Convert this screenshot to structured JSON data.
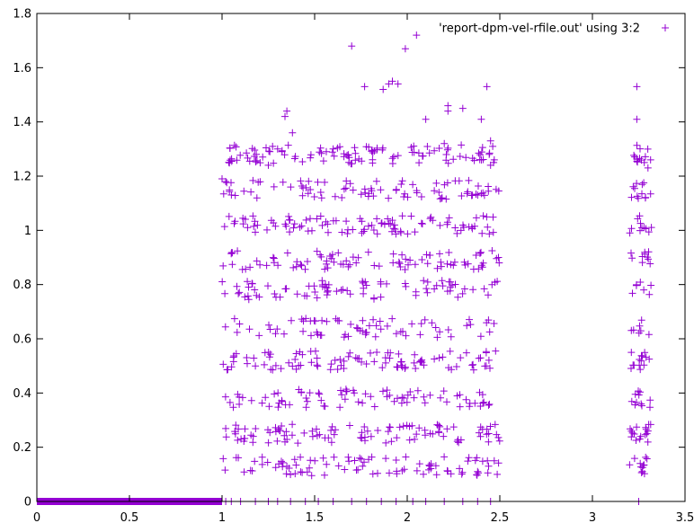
{
  "chart_data": {
    "type": "scatter",
    "title": "",
    "xlabel": "",
    "ylabel": "",
    "xlim": [
      0,
      3.5
    ],
    "ylim": [
      0,
      1.8
    ],
    "x_ticks": [
      "0",
      "0.5",
      "1",
      "1.5",
      "2",
      "2.5",
      "3",
      "3.5"
    ],
    "y_ticks": [
      "0",
      "0.2",
      "0.4",
      "0.6",
      "0.8",
      "1",
      "1.2",
      "1.4",
      "1.6",
      "1.8"
    ],
    "grid": false,
    "legend_position": "top-right",
    "marker": "plus",
    "series": [
      {
        "name": "'report-dpm-vel-rfile.out' using 3:2",
        "color": "#9400d3",
        "generator": {
          "zero_band": {
            "x_range": [
              0,
              1.0
            ],
            "y": 0
          },
          "zero_scatter_x": [
            1.02,
            1.05,
            1.1,
            1.18,
            1.25,
            1.3,
            1.37,
            1.45,
            1.52,
            1.6,
            1.7,
            1.78,
            1.86,
            1.94,
            2.03,
            2.1,
            2.2,
            2.3,
            2.38,
            2.45,
            3.25
          ],
          "clusters": [
            {
              "x_range": [
                1.0,
                2.5
              ],
              "y_levels": [
                0.13,
                0.25,
                0.38,
                0.52,
                0.64,
                0.78,
                0.89,
                1.02,
                1.15,
                1.28
              ],
              "count": 900
            },
            {
              "x_range": [
                3.2,
                3.32
              ],
              "y_levels": [
                0.13,
                0.25,
                0.38,
                0.52,
                0.64,
                0.78,
                0.89,
                1.02,
                1.15,
                1.28
              ],
              "count": 110
            }
          ]
        },
        "points": [
          [
            1.0,
            1.19
          ],
          [
            1.02,
            1.18
          ],
          [
            1.34,
            1.42
          ],
          [
            1.35,
            1.44
          ],
          [
            1.38,
            1.36
          ],
          [
            1.6,
            1.3
          ],
          [
            1.7,
            1.68
          ],
          [
            1.77,
            1.53
          ],
          [
            1.87,
            1.52
          ],
          [
            1.9,
            1.54
          ],
          [
            1.92,
            1.55
          ],
          [
            1.95,
            1.54
          ],
          [
            1.99,
            1.67
          ],
          [
            2.05,
            1.72
          ],
          [
            2.1,
            1.41
          ],
          [
            2.22,
            1.46
          ],
          [
            2.22,
            1.44
          ],
          [
            2.3,
            1.45
          ],
          [
            2.4,
            1.41
          ],
          [
            2.43,
            1.53
          ],
          [
            2.45,
            1.33
          ],
          [
            2.2,
            1.32
          ],
          [
            1.3,
            1.3
          ],
          [
            1.25,
            1.24
          ],
          [
            3.24,
            1.53
          ],
          [
            3.24,
            1.41
          ],
          [
            3.28,
            1.25
          ],
          [
            3.3,
            1.23
          ],
          [
            2.47,
            1.26
          ],
          [
            2.45,
            1.24
          ],
          [
            2.47,
            0.15
          ],
          [
            2.38,
            0.11
          ],
          [
            3.27,
            0.11
          ],
          [
            3.21,
            0.55
          ],
          [
            3.3,
            0.26
          ]
        ]
      }
    ]
  }
}
